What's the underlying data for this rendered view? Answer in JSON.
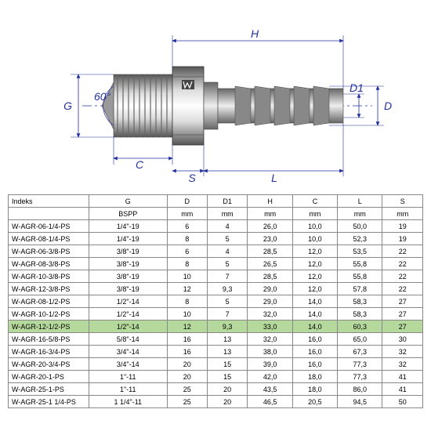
{
  "diagram": {
    "labels": {
      "H": "H",
      "G": "G",
      "C": "C",
      "S": "S",
      "L": "L",
      "D": "D",
      "D1": "D1",
      "angle": "60°"
    },
    "colors": {
      "line": "#2030a0",
      "part": "#b0b0b0",
      "part_dark": "#888",
      "hatch": "#7a7a7a"
    }
  },
  "table": {
    "headers": [
      "Indeks",
      "G",
      "D",
      "D1",
      "H",
      "C",
      "L",
      "S"
    ],
    "subheaders": [
      "",
      "BSPP",
      "mm",
      "mm",
      "mm",
      "mm",
      "mm",
      "mm"
    ],
    "highlight_index": 8,
    "rows": [
      [
        "W-AGR-06-1/4-PS",
        "1/4\"-19",
        "6",
        "4",
        "26,0",
        "10,0",
        "50,0",
        "19"
      ],
      [
        "W-AGR-08-1/4-PS",
        "1/4\"-19",
        "8",
        "5",
        "23,0",
        "10,0",
        "52,3",
        "19"
      ],
      [
        "W-AGR-06-3/8-PS",
        "3/8\"-19",
        "6",
        "4",
        "28,5",
        "12,0",
        "53,5",
        "22"
      ],
      [
        "W-AGR-08-3/8-PS",
        "3/8\"-19",
        "8",
        "5",
        "26,5",
        "12,0",
        "55,8",
        "22"
      ],
      [
        "W-AGR-10-3/8-PS",
        "3/8\"-19",
        "10",
        "7",
        "28,5",
        "12,0",
        "55,8",
        "22"
      ],
      [
        "W-AGR-12-3/8-PS",
        "3/8\"-19",
        "12",
        "9,3",
        "29,0",
        "12,0",
        "57,8",
        "22"
      ],
      [
        "W-AGR-08-1/2-PS",
        "1/2\"-14",
        "8",
        "5",
        "29,0",
        "14,0",
        "58,3",
        "27"
      ],
      [
        "W-AGR-10-1/2-PS",
        "1/2\"-14",
        "10",
        "7",
        "32,0",
        "14,0",
        "58,3",
        "27"
      ],
      [
        "W-AGR-12-1/2-PS",
        "1/2\"-14",
        "12",
        "9,3",
        "33,0",
        "14,0",
        "60,3",
        "27"
      ],
      [
        "W-AGR-16-5/8-PS",
        "5/8\"-14",
        "16",
        "13",
        "32,0",
        "16,0",
        "65,0",
        "30"
      ],
      [
        "W-AGR-16-3/4-PS",
        "3/4\"-14",
        "16",
        "13",
        "38,0",
        "16,0",
        "67,3",
        "32"
      ],
      [
        "W-AGR-20-3/4-PS",
        "3/4\"-14",
        "20",
        "15",
        "39,0",
        "16,0",
        "77,3",
        "32"
      ],
      [
        "W-AGR-20-1-PS",
        "1\"-11",
        "20",
        "15",
        "42,0",
        "18,0",
        "77,3",
        "41"
      ],
      [
        "W-AGR-25-1-PS",
        "1\"-11",
        "25",
        "20",
        "43,5",
        "18,0",
        "86,0",
        "41"
      ],
      [
        "W-AGR-25-1 1/4-PS",
        "1 1/4\"-11",
        "25",
        "20",
        "46,5",
        "20,5",
        "94,5",
        "50"
      ]
    ]
  }
}
